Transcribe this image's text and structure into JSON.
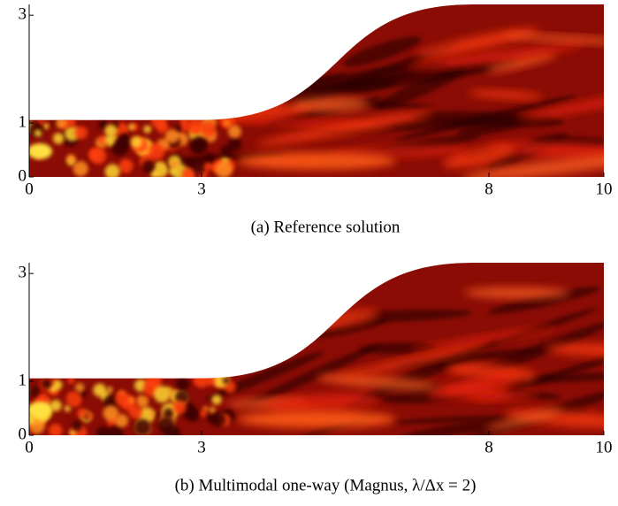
{
  "chart_data": [
    {
      "type": "field",
      "caption": "(a)  Reference solution",
      "xlim": [
        0,
        10
      ],
      "ylim": [
        0,
        3.2
      ],
      "xticks": [
        0,
        3,
        8,
        10
      ],
      "yticks": [
        0,
        1,
        3
      ]
    },
    {
      "type": "field",
      "caption": "(b)  Multimodal one-way (Magnus, λ/Δx = 2)",
      "xlim": [
        0,
        10
      ],
      "ylim": [
        0,
        3.2
      ],
      "xticks": [
        0,
        3,
        8,
        10
      ],
      "yticks": [
        0,
        1,
        3
      ]
    }
  ]
}
